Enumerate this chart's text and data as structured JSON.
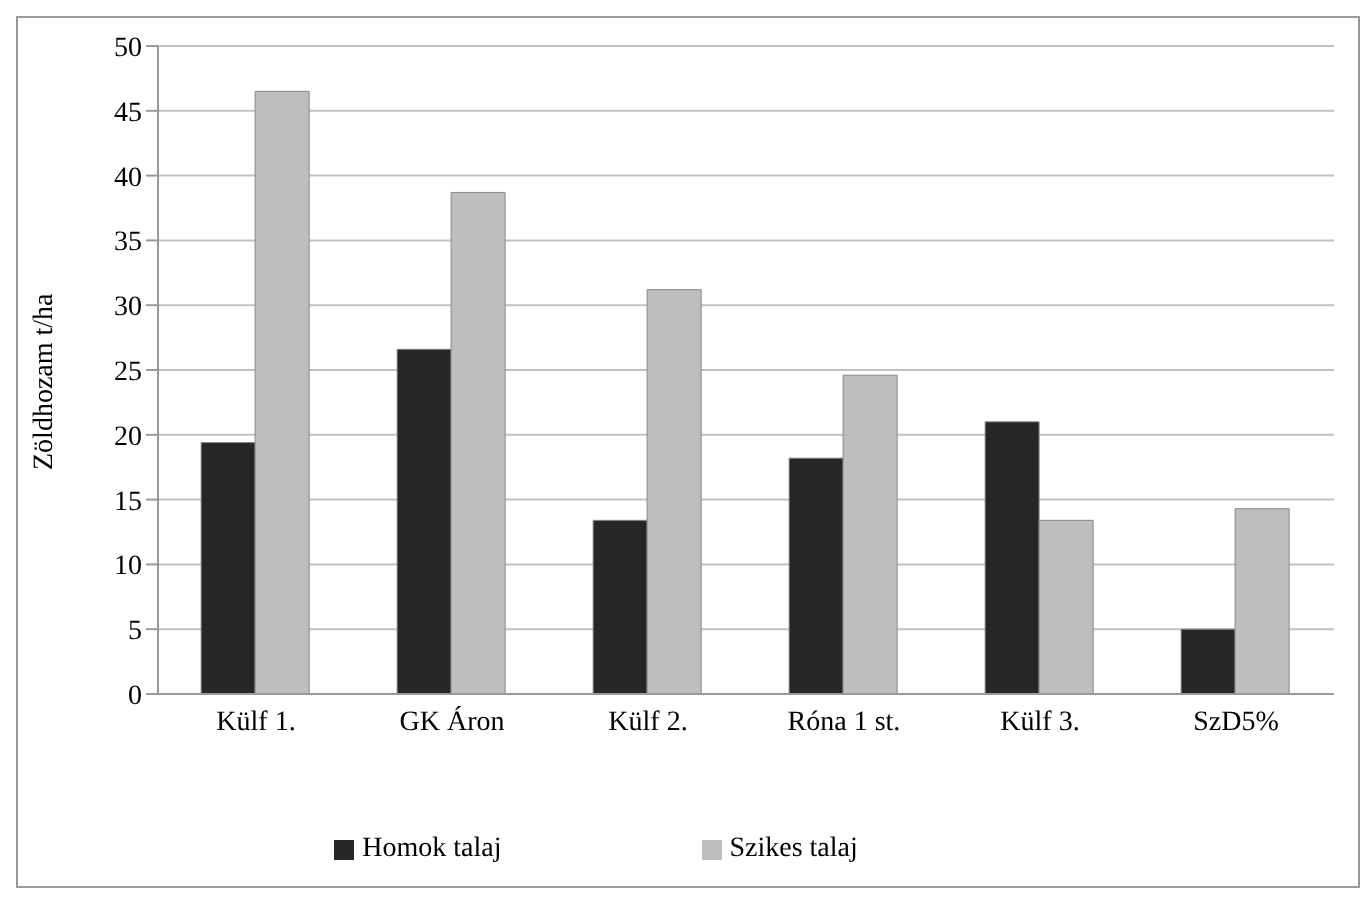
{
  "chart_data": {
    "type": "bar",
    "ylabel": "Zöldhozam t/ha",
    "categories": [
      "Külf 1.",
      "GK Áron",
      "Külf 2.",
      "Róna 1 st.",
      "Külf 3.",
      "SzD5%"
    ],
    "series": [
      {
        "name": "Homok talaj",
        "color": "#262626",
        "values": [
          19.4,
          26.6,
          13.4,
          18.2,
          21.0,
          5.0
        ]
      },
      {
        "name": "Szikes talaj",
        "color": "#bebebe",
        "values": [
          46.5,
          38.7,
          31.2,
          24.6,
          13.4,
          14.3
        ]
      }
    ],
    "ylim": [
      0,
      50
    ],
    "yticks": [
      0,
      5,
      10,
      15,
      20,
      25,
      30,
      35,
      40,
      45,
      50
    ],
    "grid": "y",
    "legend": "bottom"
  }
}
